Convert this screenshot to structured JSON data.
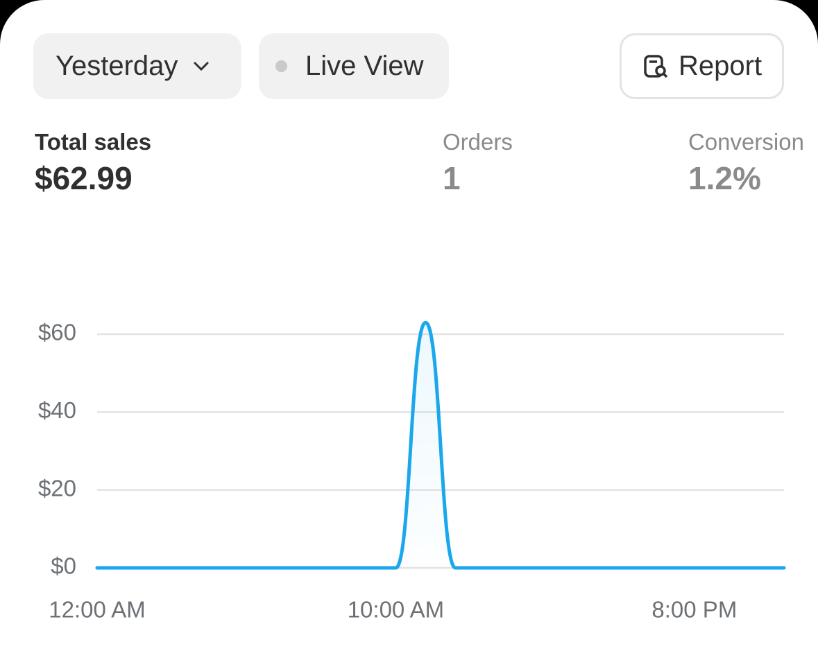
{
  "controls": {
    "period": "Yesterday",
    "live_view": "Live View",
    "report": "Report"
  },
  "metrics": [
    {
      "label": "Total sales",
      "value": "$62.99"
    },
    {
      "label": "Orders",
      "value": "1"
    },
    {
      "label": "Conversion",
      "value": "1.2%"
    }
  ],
  "chart_data": {
    "type": "line",
    "categories": [
      "12:00 AM",
      null,
      null,
      null,
      null,
      null,
      null,
      null,
      null,
      null,
      "10:00 AM",
      null,
      null,
      null,
      null,
      null,
      null,
      null,
      null,
      null,
      "8:00 PM",
      null,
      null,
      null
    ],
    "series": [
      {
        "color": "#1aa7ec",
        "values": [
          0,
          0,
          0,
          0,
          0,
          0,
          0,
          0,
          0,
          0,
          0,
          62.99,
          0,
          0,
          0,
          0,
          0,
          0,
          0,
          0,
          0,
          0,
          0,
          0
        ]
      }
    ],
    "ylim": [
      0,
      60
    ],
    "yticks": [
      {
        "value": 0,
        "label": "$0"
      },
      {
        "value": 20,
        "label": "$20"
      },
      {
        "value": 40,
        "label": "$40"
      },
      {
        "value": 60,
        "label": "$60"
      }
    ],
    "grid": true
  }
}
